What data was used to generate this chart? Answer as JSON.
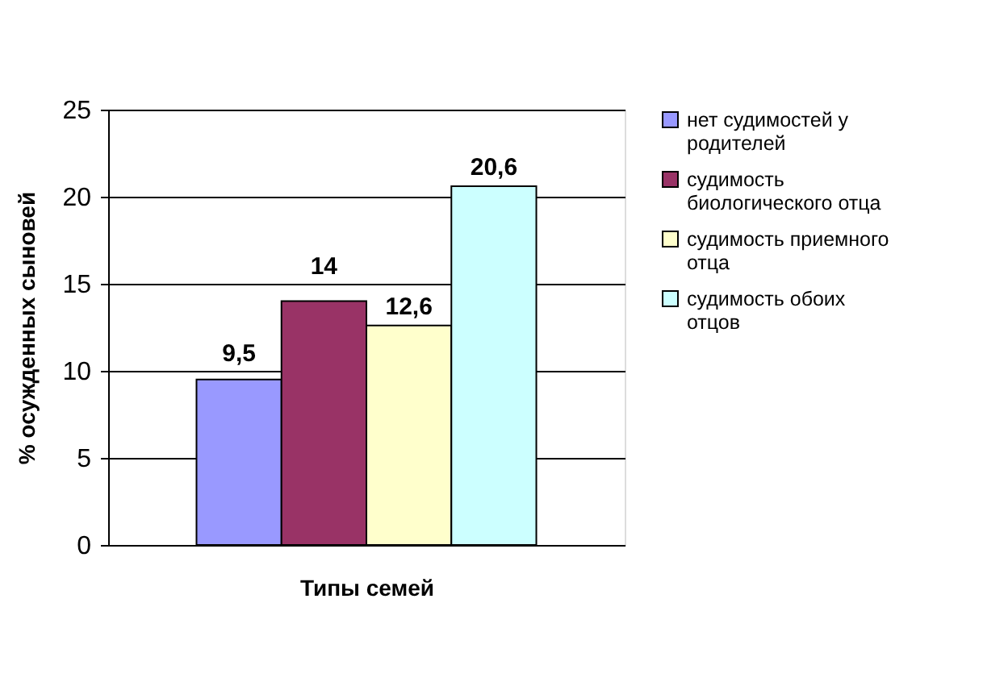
{
  "chart_data": {
    "type": "bar",
    "xlabel": "Типы семей",
    "ylabel": "% осужденных сыновей",
    "categories": [
      null
    ],
    "series": [
      {
        "name": "нет судимостей у родителей",
        "color": "#9999ff",
        "values": [
          9.5
        ],
        "value_labels": [
          "9,5"
        ]
      },
      {
        "name": "судимость биологического отца",
        "color": "#993366",
        "values": [
          14
        ],
        "value_labels": [
          "14"
        ]
      },
      {
        "name": "судимость приемного отца",
        "color": "#ffffcc",
        "values": [
          12.6
        ],
        "value_labels": [
          "12,6"
        ]
      },
      {
        "name": "судимость обоих отцов",
        "color": "#ccffff",
        "values": [
          20.6
        ],
        "value_labels": [
          "20,6"
        ]
      }
    ],
    "ylim": [
      0,
      25
    ],
    "yticks": [
      0,
      5,
      10,
      15,
      20,
      25
    ],
    "grid": "y",
    "legend": "right",
    "tick_labels": "y"
  }
}
